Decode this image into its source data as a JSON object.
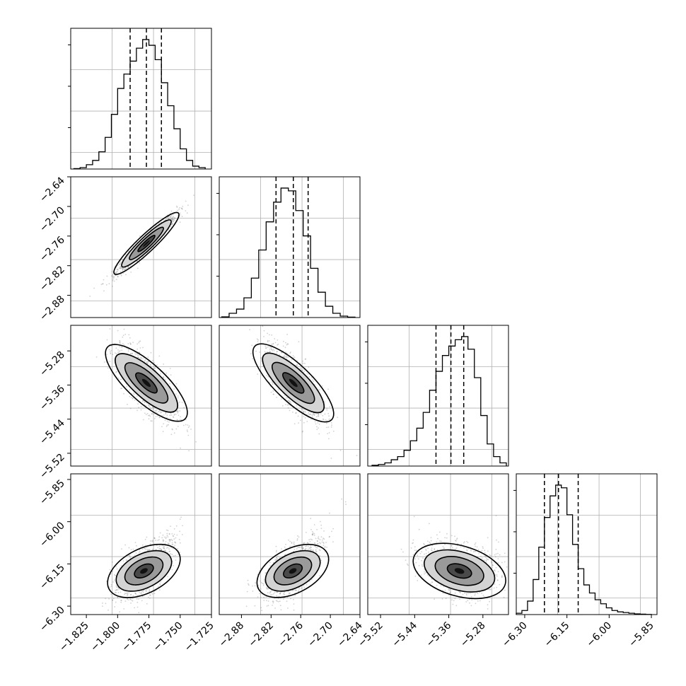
{
  "chart_data": {
    "type": "corner",
    "grid": true,
    "parameters": [
      {
        "xlim": [
          -1.8375,
          -1.725
        ],
        "ticks": [
          -1.825,
          -1.8,
          -1.775,
          -1.75,
          -1.725
        ],
        "tick_labels": [
          "−1.825",
          "−1.800",
          "−1.775",
          "−1.750",
          "−1.725"
        ]
      },
      {
        "xlim": [
          -2.925,
          -2.64
        ],
        "ticks": [
          -2.88,
          -2.82,
          -2.76,
          -2.7,
          -2.64
        ],
        "tick_labels": [
          "−2.88",
          "−2.82",
          "−2.76",
          "−2.70",
          "−2.64"
        ]
      },
      {
        "xlim": [
          -5.55,
          -5.22
        ],
        "ticks": [
          -5.52,
          -5.44,
          -5.36,
          -5.28
        ],
        "tick_labels": [
          "−5.52",
          "−5.44",
          "−5.36",
          "−5.28"
        ]
      },
      {
        "xlim": [
          -6.33,
          -5.83
        ],
        "ticks": [
          -6.3,
          -6.15,
          -6.0,
          -5.85
        ],
        "tick_labels": [
          "−6.30",
          "−6.15",
          "−6.00",
          "−5.85"
        ]
      }
    ],
    "histograms": [
      {
        "quantiles": [
          -1.79,
          -1.777,
          -1.765
        ],
        "bins": [
          -1.835,
          -1.83,
          -1.825,
          -1.82,
          -1.815,
          -1.81,
          -1.805,
          -1.8,
          -1.795,
          -1.79,
          -1.785,
          -1.78,
          -1.775,
          -1.77,
          -1.765,
          -1.76,
          -1.755,
          -1.75,
          -1.745,
          -1.74,
          -1.735,
          -1.73
        ],
        "counts": [
          0.3,
          1,
          3,
          6,
          12,
          22,
          38,
          56,
          66,
          75,
          84,
          90,
          86,
          76,
          60,
          44,
          28,
          14,
          6,
          2,
          1
        ]
      },
      {
        "quantiles": [
          -2.81,
          -2.775,
          -2.745
        ],
        "bins": [
          -2.92,
          -2.905,
          -2.89,
          -2.875,
          -2.86,
          -2.845,
          -2.83,
          -2.815,
          -2.8,
          -2.785,
          -2.77,
          -2.755,
          -2.74,
          -2.725,
          -2.71,
          -2.695,
          -2.68,
          -2.665,
          -2.65
        ],
        "counts": [
          0.5,
          3,
          6,
          14,
          28,
          48,
          68,
          82,
          92,
          90,
          76,
          58,
          35,
          18,
          8,
          3,
          1,
          0.3
        ]
      },
      {
        "quantiles": [
          -5.39,
          -5.355,
          -5.325
        ],
        "bins": [
          -5.54,
          -5.525,
          -5.51,
          -5.495,
          -5.48,
          -5.465,
          -5.45,
          -5.435,
          -5.42,
          -5.405,
          -5.39,
          -5.375,
          -5.36,
          -5.345,
          -5.33,
          -5.315,
          -5.3,
          -5.285,
          -5.27,
          -5.255,
          -5.24,
          -5.225
        ],
        "counts": [
          0.5,
          1,
          2,
          4,
          6,
          10,
          16,
          24,
          34,
          48,
          60,
          70,
          76,
          80,
          82,
          74,
          56,
          32,
          14,
          6,
          2
        ]
      },
      {
        "quantiles": [
          -6.23,
          -6.18,
          -6.11
        ],
        "bins": [
          -6.33,
          -6.31,
          -6.29,
          -6.27,
          -6.25,
          -6.23,
          -6.21,
          -6.19,
          -6.17,
          -6.15,
          -6.13,
          -6.11,
          -6.09,
          -6.07,
          -6.05,
          -6.03,
          -6.01,
          -5.99,
          -5.97,
          -5.95,
          -5.93,
          -5.91,
          -5.89,
          -5.87,
          -5.85
        ],
        "counts": [
          1,
          3,
          10,
          26,
          50,
          72,
          88,
          96,
          94,
          74,
          52,
          34,
          22,
          16,
          11,
          8,
          5,
          3,
          2,
          1.5,
          1,
          0.5,
          0.3,
          0.1
        ]
      }
    ],
    "pairs": [
      {
        "row": 1,
        "col": 0,
        "mean": [
          -1.777,
          -2.775
        ],
        "sd": [
          0.012,
          0.03
        ],
        "rho": 0.96,
        "skew": 0
      },
      {
        "row": 2,
        "col": 0,
        "mean": [
          -1.777,
          -5.355
        ],
        "sd": [
          0.012,
          0.045
        ],
        "rho": -0.72,
        "skew": 0
      },
      {
        "row": 2,
        "col": 1,
        "mean": [
          -2.775,
          -5.355
        ],
        "sd": [
          0.03,
          0.045
        ],
        "rho": -0.74,
        "skew": 0
      },
      {
        "row": 3,
        "col": 0,
        "mean": [
          -1.779,
          -6.175
        ],
        "sd": [
          0.012,
          0.05
        ],
        "rho": 0.55,
        "skew": 1
      },
      {
        "row": 3,
        "col": 1,
        "mean": [
          -2.776,
          -6.175
        ],
        "sd": [
          0.03,
          0.05
        ],
        "rho": 0.55,
        "skew": 1
      },
      {
        "row": 3,
        "col": 2,
        "mean": [
          -5.335,
          -6.175
        ],
        "sd": [
          0.045,
          0.05
        ],
        "rho": -0.4,
        "skew": 1
      }
    ]
  }
}
